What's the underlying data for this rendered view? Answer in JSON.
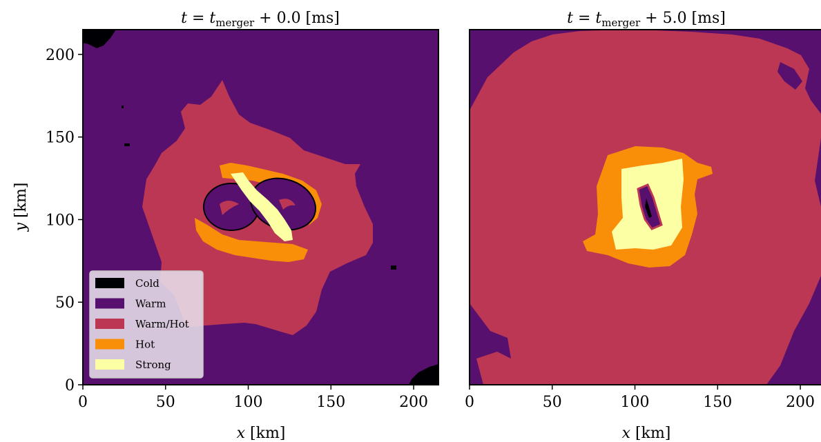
{
  "chart_data": [
    {
      "type": "heatmap",
      "title": "t = t_merger + 0.0 [ms]",
      "title_parts": {
        "t": "t",
        "eq": " = ",
        "tm": "t",
        "sub": "merger",
        "rest": " + 0.0 [ms]"
      },
      "xlabel": "x [km]",
      "xlabel_parts": {
        "var": "x",
        "unit": " [km]"
      },
      "ylabel": "y [km]",
      "ylabel_parts": {
        "var": "y",
        "unit": " [km]"
      },
      "xlim": [
        0,
        215
      ],
      "ylim": [
        0,
        215
      ],
      "xticks": [
        0,
        50,
        100,
        150,
        200
      ],
      "yticks": [
        0,
        50,
        100,
        150,
        200
      ],
      "legend": {
        "placement": "lower-left",
        "entries": [
          {
            "label": "Cold",
            "color": "#000004"
          },
          {
            "label": "Warm",
            "color": "#57106e"
          },
          {
            "label": "Warm/Hot",
            "color": "#bc3754"
          },
          {
            "label": "Hot",
            "color": "#f98e09"
          },
          {
            "label": "Strong",
            "color": "#fcffa4"
          }
        ]
      }
    },
    {
      "type": "heatmap",
      "title": "t = t_merger + 5.0 [ms]",
      "title_parts": {
        "t": "t",
        "eq": " = ",
        "tm": "t",
        "sub": "merger",
        "rest": " + 5.0 [ms]"
      },
      "xlabel": "x [km]",
      "xlabel_parts": {
        "var": "x",
        "unit": " [km]"
      },
      "xlim": [
        0,
        215
      ],
      "ylim": [
        0,
        215
      ],
      "xticks": [
        0,
        50,
        100,
        150,
        200
      ]
    }
  ]
}
